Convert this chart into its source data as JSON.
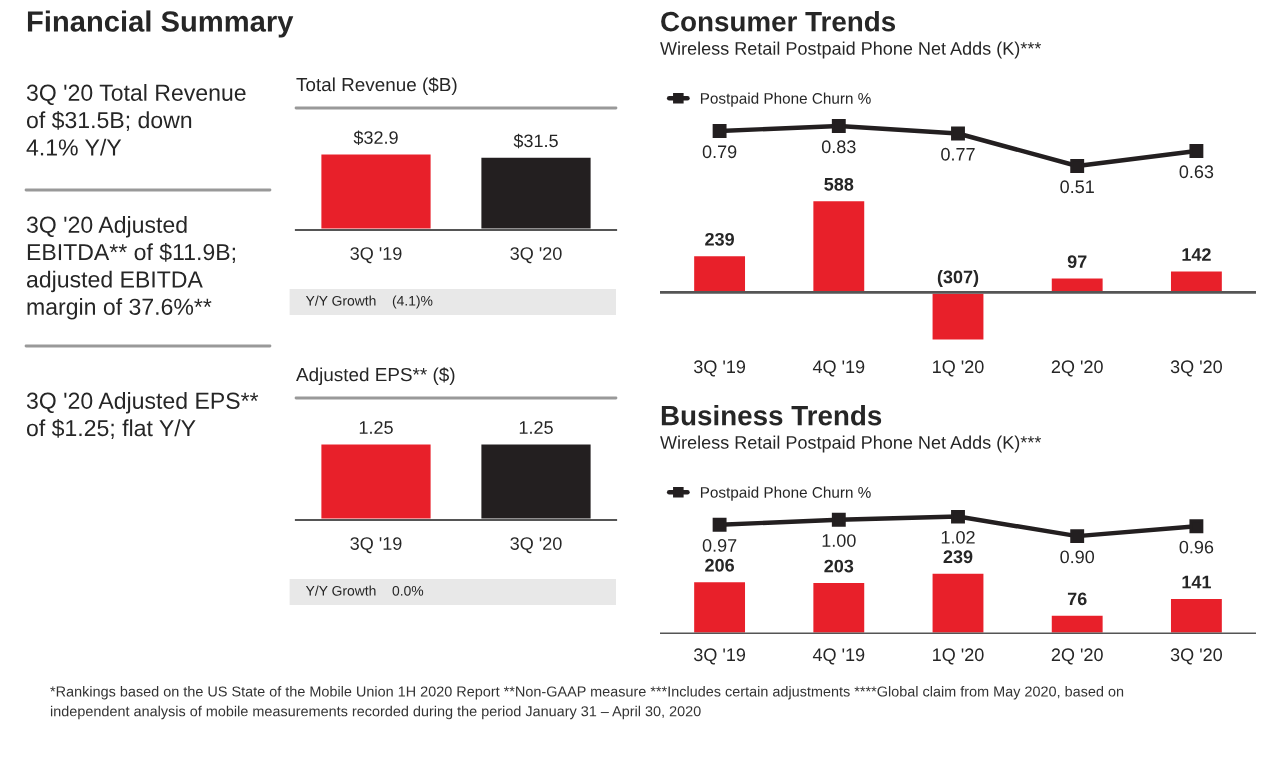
{
  "chart_data": [
    {
      "type": "other",
      "title": "Financial Summary",
      "annotations": [
        "3Q '20 Total Revenue\nof $31.5B; down\n4.1% Y/Y",
        "3Q '20 Adjusted\nEBITDA** of $11.9B;\nadjusted EBITDA\nmargin of 37.6%**",
        "3Q '20 Adjusted EPS**\nof $1.25; flat Y/Y",
        "*Rankings based on the US State of the Mobile Union 1H 2020 Report **Non-GAAP measure ***Includes certain adjustments ****Global claim from May 2020, based on\nindependent analysis of mobile measurements recorded during the period January 31 – April 30, 2020"
      ]
    },
    {
      "type": "bar",
      "title": "Total Revenue ($B)",
      "categories": [
        "3Q '19",
        "3Q '20"
      ],
      "tick_labels": "x",
      "annotations": [
        "Y/Y Growth",
        "(4.1)%"
      ],
      "series": [
        {
          "values": [
            32.9,
            31.5
          ],
          "colors": [
            "#e8202a",
            "#231f20"
          ],
          "value_labels": [
            "$32.9",
            "$31.5"
          ]
        }
      ]
    },
    {
      "type": "bar",
      "title": "Adjusted EPS** ($)",
      "categories": [
        "3Q '19",
        "3Q '20"
      ],
      "tick_labels": "x",
      "annotations": [
        "Y/Y Growth",
        "0.0%"
      ],
      "series": [
        {
          "values": [
            1.25,
            1.25
          ],
          "colors": [
            "#e8202a",
            "#231f20"
          ],
          "value_labels": [
            "1.25",
            "1.25"
          ]
        }
      ]
    },
    {
      "type": "bar",
      "title": "Consumer Trends",
      "subtitle": "Wireless Retail Postpaid Phone Net Adds (K)***",
      "categories": [
        "3Q '19",
        "4Q '19",
        "1Q '20",
        "2Q '20",
        "3Q '20"
      ],
      "tick_labels": "x",
      "legend": "top left",
      "ylim": [
        -340,
        1120
      ],
      "y2lim": [
        -0.93,
        0.91
      ],
      "series": [
        {
          "color": "#e8202a",
          "values": [
            239,
            588,
            -307,
            97,
            142
          ],
          "value_labels": [
            "239",
            "588",
            "(307)",
            "97",
            "142"
          ]
        },
        {
          "type": "line",
          "axis": "y2",
          "name": "Postpaid Phone Churn %",
          "color": "#231f20",
          "marker": "square",
          "line_style": "solid",
          "values": [
            0.79,
            0.83,
            0.77,
            0.51,
            0.63
          ],
          "value_labels": [
            "0.79",
            "0.83",
            "0.77",
            "0.51",
            "0.63"
          ]
        }
      ]
    },
    {
      "type": "bar",
      "title": "Business Trends",
      "subtitle": "Wireless Retail Postpaid Phone Net Adds (K)***",
      "categories": [
        "3Q '19",
        "4Q '19",
        "1Q '20",
        "2Q '20",
        "3Q '20"
      ],
      "tick_labels": "x",
      "legend": "top left",
      "ylim": [
        0,
        480
      ],
      "y2lim": [
        0.3,
        1.06
      ],
      "series": [
        {
          "color": "#e8202a",
          "values": [
            206,
            203,
            239,
            76,
            141
          ],
          "value_labels": [
            "206",
            "203",
            "239",
            "76",
            "141"
          ]
        },
        {
          "type": "line",
          "axis": "y2",
          "name": "Postpaid Phone Churn %",
          "color": "#231f20",
          "marker": "square",
          "line_style": "solid",
          "values": [
            0.97,
            1.0,
            1.02,
            0.9,
            0.96
          ],
          "value_labels": [
            "0.97",
            "1.00",
            "1.02",
            "0.90",
            "0.96"
          ]
        }
      ]
    }
  ]
}
